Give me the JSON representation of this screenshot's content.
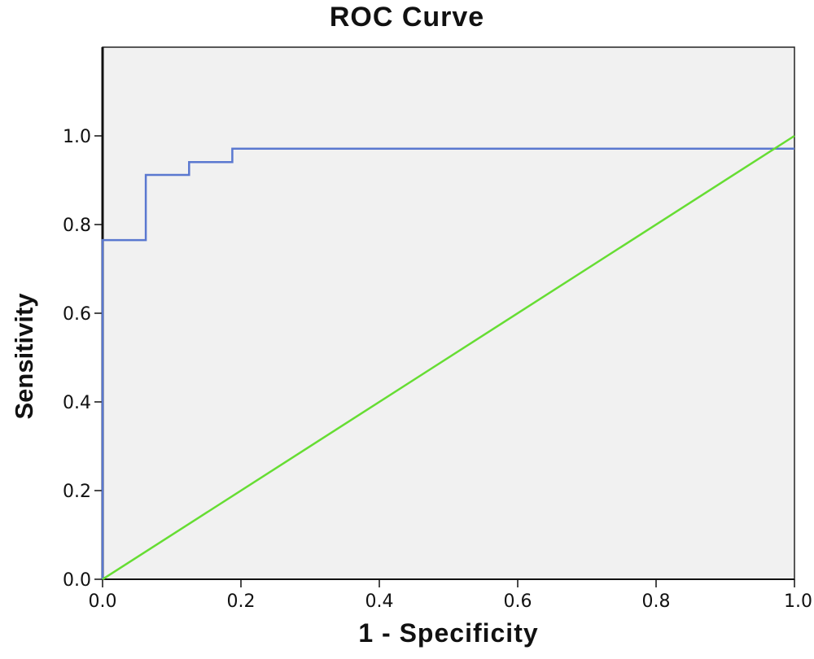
{
  "chart_data": {
    "type": "line",
    "title": "ROC Curve",
    "xlabel": "1 - Specificity",
    "ylabel": "Sensitivity",
    "xlim": [
      0,
      1
    ],
    "ylim": [
      0,
      1.2
    ],
    "x_ticks": [
      0.0,
      0.2,
      0.4,
      0.6,
      0.8,
      1.0
    ],
    "x_tick_labels": [
      "0.0",
      "0.2",
      "0.4",
      "0.6",
      "0.8",
      "1.0"
    ],
    "y_ticks": [
      0.0,
      0.2,
      0.4,
      0.6,
      0.8,
      1.0
    ],
    "y_tick_labels": [
      "0.0",
      "0.2",
      "0.4",
      "0.6",
      "0.8",
      "1.0"
    ],
    "grid": false,
    "background_color": "#f1f1f1",
    "series": [
      {
        "color": "#5a78d0",
        "step": true,
        "x": [
          0.0,
          0.0,
          0.0625,
          0.0625,
          0.125,
          0.125,
          0.1875,
          0.1875,
          1.0
        ],
        "y": [
          0.0,
          0.765,
          0.765,
          0.912,
          0.912,
          0.941,
          0.941,
          0.971,
          0.971
        ]
      },
      {
        "color": "#66dd33",
        "step": false,
        "x": [
          0.0,
          1.0
        ],
        "y": [
          0.0,
          1.0
        ]
      }
    ]
  }
}
